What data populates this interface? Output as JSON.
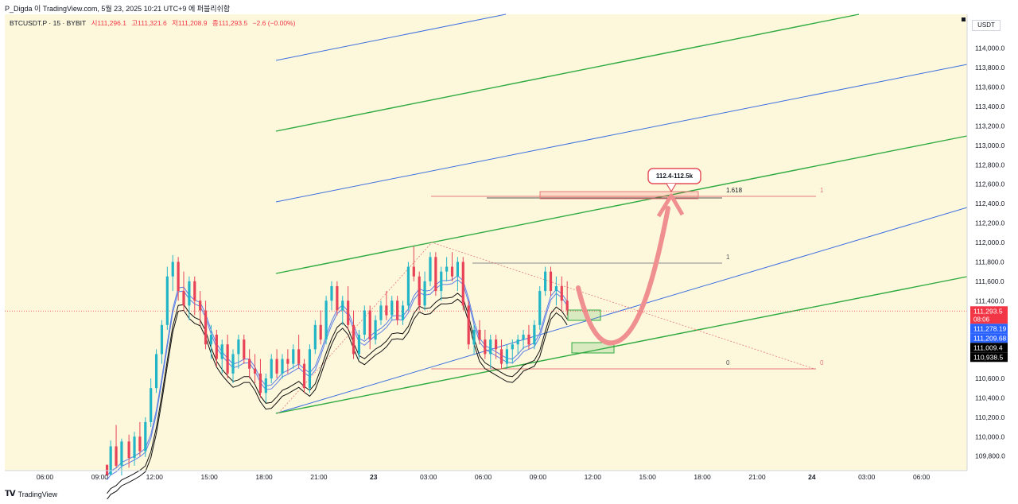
{
  "header": {
    "author_line": "P_Digda 이 TradingView.com, 5월 23, 2025 10:21 UTC+9 에 퍼블리쉬함"
  },
  "symbol_info": {
    "symbol": "BTCUSDT.P · 15 · BYBIT",
    "open": "시111,296.1",
    "high": "고111,321.6",
    "low": "저111,208.9",
    "close": "종111,293.5",
    "change": "−2.6 (−0.00%)"
  },
  "currency": "USDT",
  "footer": {
    "brand": "TradingView"
  },
  "colors": {
    "background": "#fdf8dc",
    "up": "#22b5c8",
    "down": "#e84357",
    "green_line": "#2eaa3f",
    "blue_line": "#3d6fe0",
    "envelope": "#5b7ee5",
    "black_band": "#111111",
    "fib_line": "#e57a7a",
    "arrow": "#f08f8f"
  },
  "chart_data": {
    "type": "candlestick",
    "title": "BTCUSDT.P · 15 · BYBIT",
    "ylim": [
      109650,
      114350
    ],
    "y_ticks": [
      "114,000.0",
      "113,800.0",
      "113,600.0",
      "113,400.0",
      "113,200.0",
      "113,000.0",
      "112,800.0",
      "112,600.0",
      "112,400.0",
      "112,200.0",
      "112,000.0",
      "111,800.0",
      "111,600.0",
      "111,400.0",
      "111,200.0",
      "111,000.0",
      "110,800.0",
      "110,600.0",
      "110,400.0",
      "110,200.0",
      "110,000.0",
      "109,800.0"
    ],
    "y_tick_values": [
      114000,
      113800,
      113600,
      113400,
      113200,
      113000,
      112800,
      112600,
      112400,
      112200,
      112000,
      111800,
      111600,
      111400,
      111200,
      111000,
      110800,
      110600,
      110400,
      110200,
      110000,
      109800
    ],
    "x_ticks": [
      "06:00",
      "09:00",
      "12:00",
      "15:00",
      "18:00",
      "21:00",
      "23",
      "03:00",
      "06:00",
      "09:00",
      "12:00",
      "15:00",
      "18:00",
      "21:00",
      "24",
      "03:00",
      "06:00"
    ],
    "x_tick_hours": [
      6,
      9,
      12,
      15,
      18,
      21,
      24,
      27,
      30,
      33,
      36,
      39,
      42,
      45,
      48,
      51,
      54
    ],
    "x_range_hours": [
      3.8,
      56.5
    ],
    "price_labels": [
      {
        "text": "111,293.5",
        "sub": "08:06",
        "value": 111293.5,
        "color": "#f23645"
      },
      {
        "text": "111,278.19",
        "value": 111278.19,
        "color": "#2962ff"
      },
      {
        "text": "111,209.68",
        "value": 111209.68,
        "color": "#2962ff"
      },
      {
        "text": "111,009.4",
        "value": 111009.4,
        "color": "#000000"
      },
      {
        "text": "110,938.5",
        "value": 110938.5,
        "color": "#000000"
      }
    ],
    "last_price": 111293.5,
    "candles": [
      [
        9.4,
        109710,
        109710,
        109600,
        109600
      ],
      [
        9.6,
        109610,
        109960,
        109600,
        109900
      ],
      [
        9.9,
        109900,
        110120,
        109680,
        109700
      ],
      [
        10.2,
        109700,
        109980,
        109600,
        109950
      ],
      [
        10.6,
        109950,
        110020,
        109680,
        109780
      ],
      [
        10.9,
        109780,
        110050,
        109700,
        110000
      ],
      [
        11.2,
        110000,
        110150,
        109800,
        109850
      ],
      [
        11.5,
        109850,
        110200,
        109790,
        110150
      ],
      [
        11.8,
        110150,
        110600,
        110100,
        110500
      ],
      [
        12.1,
        110500,
        110900,
        110450,
        110850
      ],
      [
        12.4,
        110850,
        111200,
        110750,
        111150
      ],
      [
        12.7,
        111150,
        111750,
        111100,
        111650
      ],
      [
        13.0,
        111650,
        111870,
        111500,
        111800
      ],
      [
        13.3,
        111800,
        111850,
        111400,
        111500
      ],
      [
        13.6,
        111500,
        111700,
        111300,
        111350
      ],
      [
        13.9,
        111350,
        111650,
        111200,
        111600
      ],
      [
        14.2,
        111600,
        111650,
        111250,
        111400
      ],
      [
        14.5,
        111400,
        111500,
        111150,
        111300
      ],
      [
        14.8,
        111300,
        111400,
        110900,
        110950
      ],
      [
        15.1,
        110950,
        111150,
        110800,
        111050
      ],
      [
        15.4,
        111050,
        111100,
        110720,
        110800
      ],
      [
        15.7,
        110800,
        111000,
        110650,
        110950
      ],
      [
        16.0,
        110950,
        111050,
        110600,
        110650
      ],
      [
        16.3,
        110650,
        110900,
        110550,
        110850
      ],
      [
        16.6,
        110850,
        111050,
        110700,
        111000
      ],
      [
        16.9,
        111000,
        111050,
        110750,
        110800
      ],
      [
        17.2,
        110800,
        110900,
        110600,
        110700
      ],
      [
        17.5,
        110700,
        110850,
        110550,
        110650
      ],
      [
        17.8,
        110650,
        110800,
        110400,
        110450
      ],
      [
        18.1,
        110450,
        110650,
        110350,
        110600
      ],
      [
        18.4,
        110600,
        110850,
        110550,
        110800
      ],
      [
        18.7,
        110800,
        110900,
        110600,
        110650
      ],
      [
        19.0,
        110650,
        110850,
        110600,
        110800
      ],
      [
        19.3,
        110800,
        110900,
        110650,
        110750
      ],
      [
        19.6,
        110750,
        110950,
        110700,
        110900
      ],
      [
        19.9,
        110900,
        111050,
        110700,
        110750
      ],
      [
        20.2,
        110750,
        110800,
        110450,
        110500
      ],
      [
        20.5,
        110500,
        110950,
        110450,
        110900
      ],
      [
        20.8,
        110900,
        111200,
        110850,
        111150
      ],
      [
        21.1,
        111150,
        111300,
        110950,
        111000
      ],
      [
        21.4,
        111000,
        111450,
        110950,
        111400
      ],
      [
        21.7,
        111400,
        111600,
        111300,
        111550
      ],
      [
        22.0,
        111550,
        111600,
        111250,
        111300
      ],
      [
        22.3,
        111300,
        111450,
        111150,
        111400
      ],
      [
        22.6,
        111400,
        111550,
        111100,
        111150
      ],
      [
        22.9,
        111150,
        111300,
        110800,
        110850
      ],
      [
        23.2,
        110850,
        111100,
        110800,
        111050
      ],
      [
        23.5,
        111050,
        111350,
        111000,
        111300
      ],
      [
        23.8,
        111300,
        111350,
        110900,
        111000
      ],
      [
        24.1,
        111000,
        111250,
        110950,
        111200
      ],
      [
        24.4,
        111200,
        111400,
        111150,
        111350
      ],
      [
        24.7,
        111350,
        111500,
        111200,
        111250
      ],
      [
        25.0,
        111250,
        111450,
        111200,
        111400
      ],
      [
        25.3,
        111400,
        111450,
        111150,
        111200
      ],
      [
        25.6,
        111200,
        111400,
        111150,
        111350
      ],
      [
        25.9,
        111350,
        111800,
        111300,
        111750
      ],
      [
        26.2,
        111750,
        111960,
        111600,
        111650
      ],
      [
        26.5,
        111650,
        111700,
        111300,
        111350
      ],
      [
        26.8,
        111350,
        111700,
        111300,
        111600
      ],
      [
        27.1,
        111600,
        111900,
        111550,
        111850
      ],
      [
        27.4,
        111850,
        111900,
        111450,
        111500
      ],
      [
        27.7,
        111500,
        111750,
        111400,
        111700
      ],
      [
        28.0,
        111700,
        111850,
        111600,
        111750
      ],
      [
        28.3,
        111750,
        111900,
        111600,
        111650
      ],
      [
        28.6,
        111650,
        111850,
        111500,
        111800
      ],
      [
        28.9,
        111800,
        111850,
        111300,
        111350
      ],
      [
        29.2,
        111350,
        111400,
        110900,
        110950
      ],
      [
        29.5,
        110950,
        111150,
        110850,
        111100
      ],
      [
        29.8,
        111100,
        111200,
        110950,
        111000
      ],
      [
        30.1,
        111000,
        111100,
        110800,
        110850
      ],
      [
        30.4,
        110850,
        111050,
        110700,
        111000
      ],
      [
        30.7,
        111000,
        111050,
        110800,
        110900
      ],
      [
        31.0,
        110900,
        111000,
        110700,
        110750
      ],
      [
        31.3,
        110750,
        110950,
        110700,
        110900
      ],
      [
        31.6,
        110900,
        111000,
        110750,
        110950
      ],
      [
        31.9,
        110950,
        111050,
        110850,
        111000
      ],
      [
        32.2,
        111000,
        111100,
        110900,
        111050
      ],
      [
        32.5,
        111050,
        111150,
        110900,
        110950
      ],
      [
        32.8,
        110950,
        111200,
        110900,
        111150
      ],
      [
        33.1,
        111150,
        111550,
        111100,
        111500
      ],
      [
        33.4,
        111500,
        111750,
        111450,
        111700
      ],
      [
        33.7,
        111700,
        111750,
        111450,
        111500
      ],
      [
        34.0,
        111500,
        111650,
        111350,
        111550
      ],
      [
        34.3,
        111550,
        111650,
        111300,
        111400
      ],
      [
        34.6,
        111400,
        111600,
        111250,
        111300
      ]
    ]
  }
}
